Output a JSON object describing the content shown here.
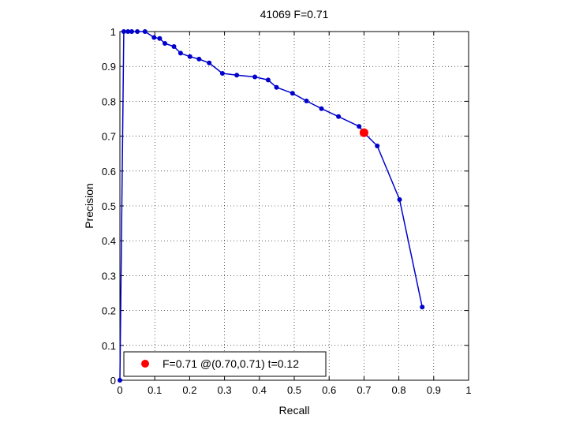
{
  "chart_data": {
    "type": "line",
    "title": "41069 F=0.71",
    "xlabel": "Recall",
    "ylabel": "Precision",
    "xlim": [
      0,
      1
    ],
    "ylim": [
      0,
      1
    ],
    "grid": true,
    "xticks": [
      0,
      0.1,
      0.2,
      0.3,
      0.4,
      0.5,
      0.6,
      0.7,
      0.8,
      0.9,
      1
    ],
    "yticks": [
      0,
      0.1,
      0.2,
      0.3,
      0.4,
      0.5,
      0.6,
      0.7,
      0.8,
      0.9,
      1
    ],
    "xtick_labels": [
      "0",
      "0.1",
      "0.2",
      "0.3",
      "0.4",
      "0.5",
      "0.6",
      "0.7",
      "0.8",
      "0.9",
      "1"
    ],
    "ytick_labels": [
      "0",
      "0.1",
      "0.2",
      "0.3",
      "0.4",
      "0.5",
      "0.6",
      "0.7",
      "0.8",
      "0.9",
      "1"
    ],
    "series": [
      {
        "color": "#0000cc",
        "x": [
          0.867,
          0.802,
          0.738,
          0.7,
          0.686,
          0.627,
          0.578,
          0.535,
          0.495,
          0.449,
          0.425,
          0.387,
          0.335,
          0.294,
          0.256,
          0.227,
          0.201,
          0.174,
          0.155,
          0.129,
          0.114,
          0.098,
          0.072,
          0.05,
          0.034,
          0.023,
          0.011,
          0.0
        ],
        "y": [
          0.21,
          0.518,
          0.672,
          0.71,
          0.728,
          0.756,
          0.779,
          0.801,
          0.823,
          0.84,
          0.861,
          0.87,
          0.875,
          0.88,
          0.91,
          0.921,
          0.928,
          0.938,
          0.957,
          0.966,
          0.98,
          0.983,
          1.0,
          1.0,
          1.0,
          1.0,
          1.0,
          0.0
        ]
      }
    ],
    "highlight": {
      "x": 0.7,
      "y": 0.71,
      "color": "#ff0000"
    },
    "legend": {
      "position": "bottom-left",
      "label": "F=0.71 @(0.70,0.71) t=0.12"
    }
  }
}
